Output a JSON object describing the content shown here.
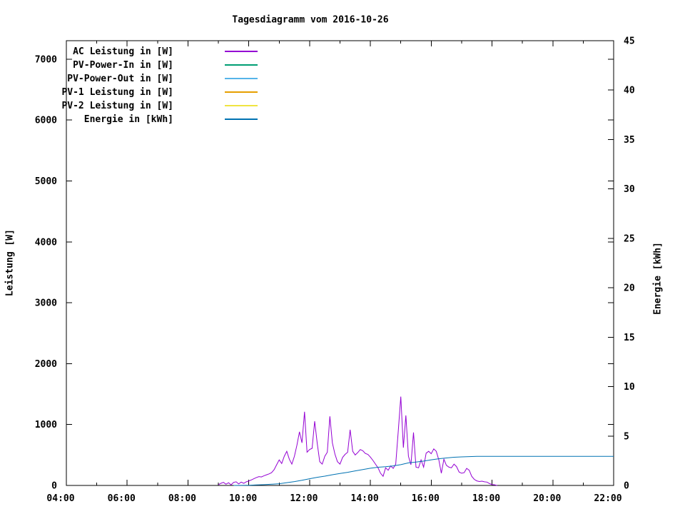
{
  "header": {
    "title": "Tagesdiagramm vom 2016-10-26"
  },
  "chart_data": {
    "type": "line",
    "title": "Tagesdiagramm vom 2016-10-26",
    "grid": false,
    "legend_position": "inside-top-left",
    "x_axis": {
      "label": "",
      "unit": "time",
      "range_hours": [
        4,
        22
      ],
      "major_tick_every_hours": 2,
      "minor_tick_every_hours": 1,
      "tick_labels": [
        "04:00",
        "06:00",
        "08:00",
        "10:00",
        "12:00",
        "14:00",
        "16:00",
        "18:00",
        "20:00",
        "22:00"
      ]
    },
    "y_axis_left": {
      "label": "Leistung [W]",
      "ticks": [
        0,
        1000,
        2000,
        3000,
        4000,
        5000,
        6000,
        7000
      ],
      "range": [
        0,
        7303
      ]
    },
    "y_axis_right": {
      "label": "Energie [kWh]",
      "ticks": [
        0,
        5,
        10,
        15,
        20,
        25,
        30,
        35,
        40,
        45
      ],
      "range": [
        0,
        45
      ]
    },
    "series": [
      {
        "name": "AC Leistung in [W]",
        "color": "#9400D3",
        "axis": "left",
        "unit": "W",
        "start_hour": 9.0,
        "step_hours": 0.0833333,
        "values": [
          10,
          35,
          50,
          20,
          45,
          10,
          50,
          60,
          25,
          55,
          35,
          60,
          75,
          90,
          110,
          130,
          145,
          140,
          160,
          175,
          190,
          210,
          260,
          340,
          420,
          360,
          480,
          560,
          430,
          350,
          480,
          660,
          880,
          700,
          1210,
          545,
          590,
          610,
          1055,
          700,
          390,
          350,
          480,
          545,
          1135,
          700,
          515,
          390,
          350,
          460,
          510,
          545,
          915,
          560,
          500,
          540,
          590,
          570,
          525,
          510,
          465,
          410,
          350,
          290,
          200,
          150,
          290,
          250,
          320,
          280,
          350,
          900,
          1460,
          620,
          1150,
          480,
          340,
          870,
          300,
          290,
          420,
          300,
          530,
          560,
          520,
          600,
          560,
          420,
          200,
          430,
          330,
          300,
          290,
          350,
          310,
          220,
          200,
          210,
          280,
          250,
          150,
          100,
          75,
          65,
          70,
          60,
          55,
          30,
          15,
          10,
          0
        ]
      },
      {
        "name": "PV-Power-In in [W]",
        "color": "#009E73",
        "axis": "left",
        "unit": "W",
        "start_hour": null,
        "step_hours": null,
        "values": []
      },
      {
        "name": "PV-Power-Out in [W]",
        "color": "#56B4E9",
        "axis": "left",
        "unit": "W",
        "start_hour": null,
        "step_hours": null,
        "values": []
      },
      {
        "name": "PV-1 Leistung in [W]",
        "color": "#E69F00",
        "axis": "left",
        "unit": "W",
        "start_hour": null,
        "step_hours": null,
        "values": []
      },
      {
        "name": "PV-2 Leistung in [W]",
        "color": "#F0E442",
        "axis": "left",
        "unit": "W",
        "start_hour": null,
        "step_hours": null,
        "values": []
      },
      {
        "name": "Energie in [kWh]",
        "color": "#0072B2",
        "axis": "right",
        "unit": "kWh",
        "start_hour": 9.5,
        "step_hours": 0.25,
        "values": [
          0.0,
          0.01,
          0.02,
          0.05,
          0.08,
          0.12,
          0.17,
          0.28,
          0.39,
          0.52,
          0.68,
          0.82,
          0.94,
          1.08,
          1.21,
          1.33,
          1.47,
          1.61,
          1.74,
          1.84,
          1.9,
          1.98,
          2.1,
          2.28,
          2.37,
          2.46,
          2.59,
          2.7,
          2.78,
          2.85,
          2.89,
          2.92,
          2.94,
          2.95,
          2.95,
          2.95,
          2.95,
          2.95,
          2.95,
          2.95,
          2.95,
          2.95,
          2.95,
          2.95,
          2.95,
          2.95,
          2.95,
          2.95,
          2.95,
          2.95,
          2.95
        ]
      }
    ]
  }
}
